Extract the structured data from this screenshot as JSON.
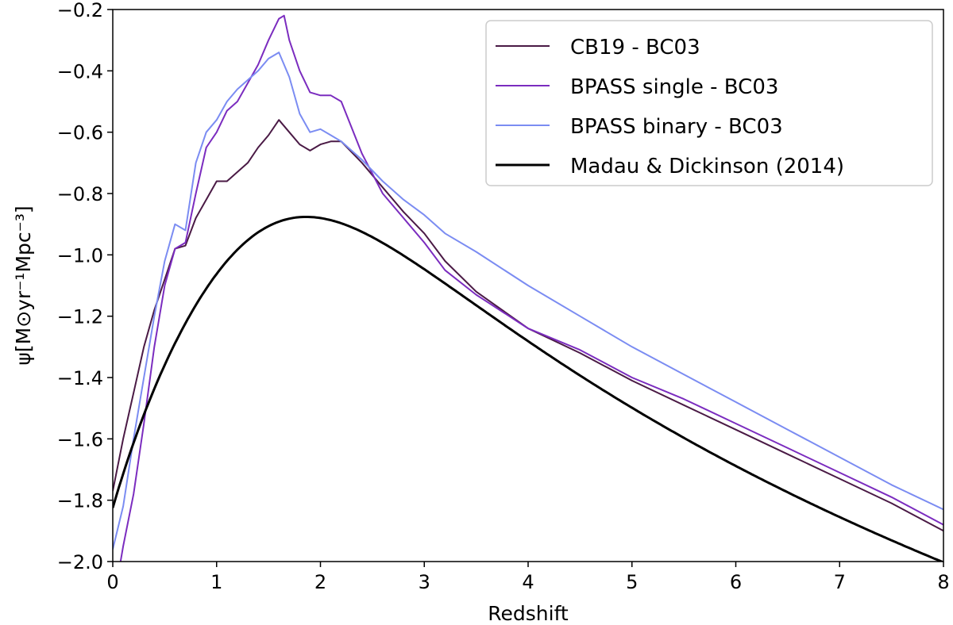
{
  "chart_data": {
    "type": "line",
    "title": "",
    "xlabel": "Redshift",
    "ylabel": "ψ[M⊙yr⁻¹Mpc⁻³]",
    "xlim": [
      0,
      8
    ],
    "ylim": [
      -2.0,
      -0.2
    ],
    "x_ticks": [
      0,
      1,
      2,
      3,
      4,
      5,
      6,
      7,
      8
    ],
    "x_tick_labels": [
      "0",
      "1",
      "2",
      "3",
      "4",
      "5",
      "6",
      "7",
      "8"
    ],
    "y_ticks": [
      -2.0,
      -1.8,
      -1.6,
      -1.4,
      -1.2,
      -1.0,
      -0.8,
      -0.6,
      -0.4,
      -0.2
    ],
    "y_tick_labels": [
      "−2.0",
      "−1.8",
      "−1.6",
      "−1.4",
      "−1.2",
      "−1.0",
      "−0.8",
      "−0.6",
      "−0.4",
      "−0.2"
    ],
    "grid": false,
    "legend_position": "top-right",
    "series": [
      {
        "name": "CB19 - BC03",
        "color": "#4a1a45",
        "x": [
          0,
          0.1,
          0.2,
          0.3,
          0.4,
          0.5,
          0.6,
          0.7,
          0.8,
          0.9,
          1.0,
          1.1,
          1.2,
          1.3,
          1.4,
          1.5,
          1.6,
          1.7,
          1.8,
          1.9,
          2.0,
          2.1,
          2.2,
          2.4,
          2.6,
          2.8,
          3.0,
          3.2,
          3.5,
          4.0,
          4.5,
          5.0,
          5.5,
          6.0,
          6.5,
          7.0,
          7.5,
          8.0
        ],
        "y": [
          -1.77,
          -1.6,
          -1.45,
          -1.3,
          -1.18,
          -1.08,
          -0.98,
          -0.97,
          -0.88,
          -0.82,
          -0.76,
          -0.76,
          -0.73,
          -0.7,
          -0.65,
          -0.61,
          -0.56,
          -0.6,
          -0.64,
          -0.66,
          -0.64,
          -0.63,
          -0.63,
          -0.7,
          -0.78,
          -0.86,
          -0.93,
          -1.02,
          -1.12,
          -1.24,
          -1.32,
          -1.41,
          -1.49,
          -1.57,
          -1.65,
          -1.73,
          -1.81,
          -1.9
        ]
      },
      {
        "name": "BPASS single - BC03",
        "color": "#7b2cbf",
        "x": [
          0.05,
          0.1,
          0.2,
          0.3,
          0.4,
          0.5,
          0.6,
          0.7,
          0.8,
          0.9,
          1.0,
          1.1,
          1.2,
          1.3,
          1.4,
          1.5,
          1.6,
          1.65,
          1.7,
          1.8,
          1.9,
          2.0,
          2.1,
          2.2,
          2.4,
          2.6,
          2.8,
          3.0,
          3.2,
          3.5,
          4.0,
          4.5,
          5.0,
          5.5,
          6.0,
          6.5,
          7.0,
          7.5,
          8.0
        ],
        "y": [
          -2.05,
          -1.95,
          -1.78,
          -1.55,
          -1.3,
          -1.1,
          -0.98,
          -0.96,
          -0.8,
          -0.65,
          -0.6,
          -0.53,
          -0.5,
          -0.44,
          -0.38,
          -0.3,
          -0.23,
          -0.22,
          -0.3,
          -0.4,
          -0.47,
          -0.48,
          -0.48,
          -0.5,
          -0.67,
          -0.8,
          -0.88,
          -0.96,
          -1.05,
          -1.13,
          -1.24,
          -1.31,
          -1.4,
          -1.47,
          -1.55,
          -1.63,
          -1.71,
          -1.79,
          -1.88
        ]
      },
      {
        "name": "BPASS binary - BC03",
        "color": "#7b8cf2",
        "x": [
          0,
          0.1,
          0.2,
          0.3,
          0.4,
          0.5,
          0.6,
          0.7,
          0.8,
          0.9,
          1.0,
          1.1,
          1.2,
          1.3,
          1.4,
          1.5,
          1.6,
          1.7,
          1.8,
          1.9,
          2.0,
          2.1,
          2.2,
          2.4,
          2.6,
          2.8,
          3.0,
          3.2,
          3.5,
          4.0,
          4.5,
          5.0,
          5.5,
          6.0,
          6.5,
          7.0,
          7.5,
          8.0
        ],
        "y": [
          -1.96,
          -1.82,
          -1.6,
          -1.4,
          -1.2,
          -1.02,
          -0.9,
          -0.92,
          -0.7,
          -0.6,
          -0.56,
          -0.5,
          -0.46,
          -0.43,
          -0.4,
          -0.36,
          -0.34,
          -0.42,
          -0.54,
          -0.6,
          -0.59,
          -0.61,
          -0.63,
          -0.69,
          -0.76,
          -0.82,
          -0.87,
          -0.93,
          -0.99,
          -1.1,
          -1.2,
          -1.3,
          -1.39,
          -1.48,
          -1.57,
          -1.66,
          -1.75,
          -1.83
        ]
      },
      {
        "name": "Madau & Dickinson (2014)",
        "color": "#000000",
        "model": "madau-dickinson-2014"
      }
    ]
  }
}
